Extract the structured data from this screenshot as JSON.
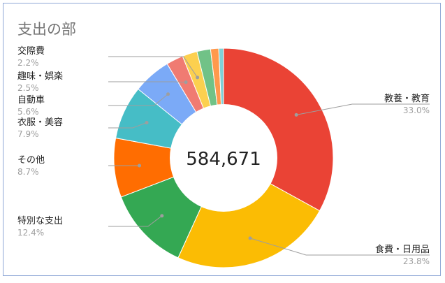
{
  "chart_data": {
    "type": "pie",
    "title": "支出の部",
    "center_label": "584,671",
    "slices": [
      {
        "label": "教養・教育",
        "value": 33.0,
        "pct_label": "33.0%",
        "color": "#ea4335"
      },
      {
        "label": "食費・日用品",
        "value": 23.8,
        "pct_label": "23.8%",
        "color": "#fbbc04"
      },
      {
        "label": "特別な支出",
        "value": 12.4,
        "pct_label": "12.4%",
        "color": "#34a853"
      },
      {
        "label": "その他",
        "value": 8.7,
        "pct_label": "8.7%",
        "color": "#ff6d01"
      },
      {
        "label": "衣服・美容",
        "value": 7.9,
        "pct_label": "7.9%",
        "color": "#46bdc6"
      },
      {
        "label": "自動車",
        "value": 5.6,
        "pct_label": "5.6%",
        "color": "#7baaf7"
      },
      {
        "label": "趣味・娯楽",
        "value": 2.5,
        "pct_label": "2.5%",
        "color": "#f07b72"
      },
      {
        "label": "交際費",
        "value": 2.2,
        "pct_label": "2.2%",
        "color": "#fcd04f"
      },
      {
        "label": "",
        "value": 2.0,
        "pct_label": "",
        "color": "#71c287"
      },
      {
        "label": "",
        "value": 1.2,
        "pct_label": "",
        "color": "#ff994d"
      },
      {
        "label": "",
        "value": 0.7,
        "pct_label": "",
        "color": "#7ed1d7"
      }
    ]
  }
}
